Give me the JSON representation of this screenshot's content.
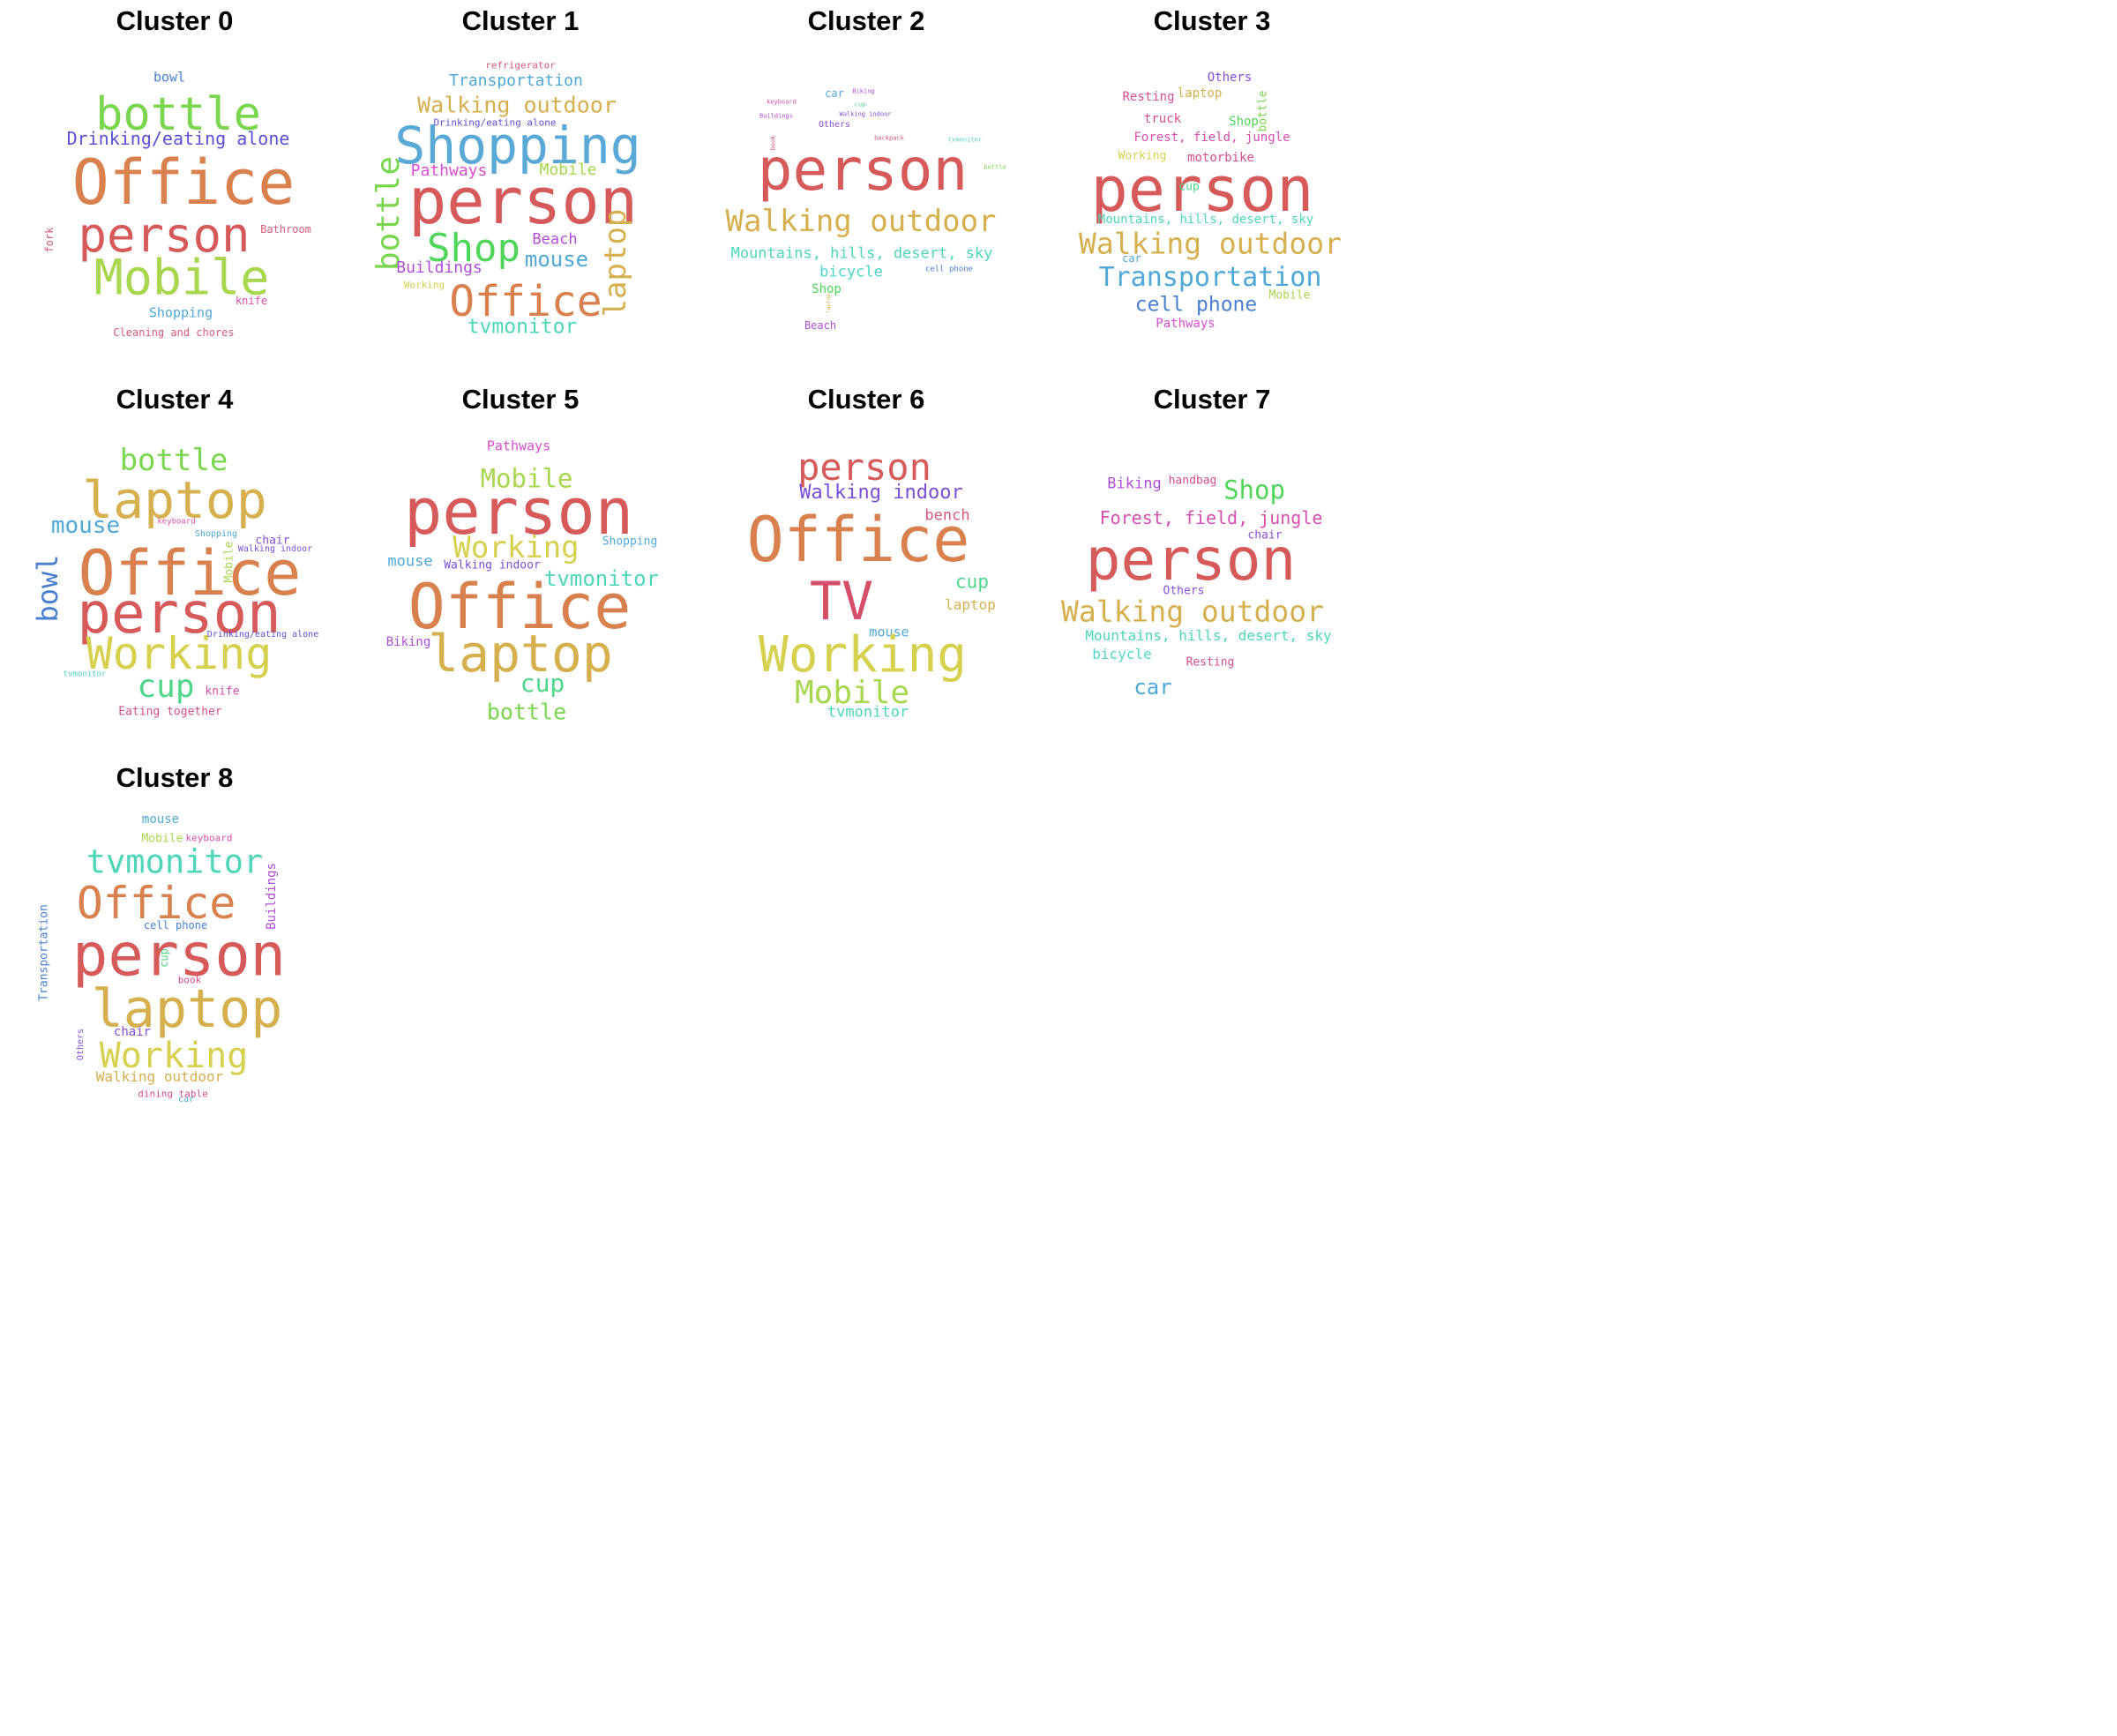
{
  "figure_title": "",
  "clusters": [
    {
      "title": "Cluster 0",
      "words": [
        {
          "text": "bowl",
          "weight": 0.1,
          "color": "#4a7fd0"
        },
        {
          "text": "bottle",
          "weight": 0.55,
          "color": "#7bd64f"
        },
        {
          "text": "Drinking/eating alone",
          "weight": 0.22,
          "color": "#5a4fd6"
        },
        {
          "text": "Office",
          "weight": 1.0,
          "color": "#d9804f"
        },
        {
          "text": "person",
          "weight": 0.68,
          "color": "#d65a5a"
        },
        {
          "text": "Bathroom",
          "weight": 0.08,
          "color": "#d65a7a"
        },
        {
          "text": "fork",
          "weight": 0.07,
          "color": "#d65a7a"
        },
        {
          "text": "Mobile",
          "weight": 0.7,
          "color": "#a8d64f"
        },
        {
          "text": "knife",
          "weight": 0.08,
          "color": "#d64fa8"
        },
        {
          "text": "Shopping",
          "weight": 0.12,
          "color": "#4fa8d6"
        },
        {
          "text": "Cleaning and chores",
          "weight": 0.08,
          "color": "#d65a7a"
        }
      ]
    },
    {
      "title": "Cluster 1",
      "words": [
        {
          "text": "refrigerator",
          "weight": 0.08,
          "color": "#d65a7a"
        },
        {
          "text": "Transportation",
          "weight": 0.2,
          "color": "#4fa8d6"
        },
        {
          "text": "Walking outdoor",
          "weight": 0.27,
          "color": "#d6b04f"
        },
        {
          "text": "Drinking/eating alone",
          "weight": 0.08,
          "color": "#5a4fd6"
        },
        {
          "text": "Shopping",
          "weight": 0.78,
          "color": "#5aa8d6"
        },
        {
          "text": "Pathways",
          "weight": 0.17,
          "color": "#d64fd0"
        },
        {
          "text": "Mobile",
          "weight": 0.17,
          "color": "#a8d64f"
        },
        {
          "text": "person",
          "weight": 1.0,
          "color": "#d65a5a"
        },
        {
          "text": "bottle",
          "weight": 0.32,
          "color": "#7bd64f"
        },
        {
          "text": "Shop",
          "weight": 0.52,
          "color": "#4fd65a"
        },
        {
          "text": "Beach",
          "weight": 0.16,
          "color": "#b04fd6"
        },
        {
          "text": "mouse",
          "weight": 0.28,
          "color": "#4fa8d6"
        },
        {
          "text": "laptop",
          "weight": 0.3,
          "color": "#d6b04f"
        },
        {
          "text": "Buildings",
          "weight": 0.17,
          "color": "#b04fd6"
        },
        {
          "text": "Working",
          "weight": 0.07,
          "color": "#d6d04f"
        },
        {
          "text": "Office",
          "weight": 0.62,
          "color": "#d9804f"
        },
        {
          "text": "tvmonitor",
          "weight": 0.24,
          "color": "#4fd6b8"
        }
      ]
    },
    {
      "title": "Cluster 2",
      "words": [
        {
          "text": "car",
          "weight": 0.1,
          "color": "#4fa8d6"
        },
        {
          "text": "Biking",
          "weight": 0.05,
          "color": "#b04fd6"
        },
        {
          "text": "keyboard",
          "weight": 0.05,
          "color": "#d64fa8"
        },
        {
          "text": "cup",
          "weight": 0.05,
          "color": "#4fd68a"
        },
        {
          "text": "Buildings",
          "weight": 0.05,
          "color": "#b04fd6"
        },
        {
          "text": "Walking indoor",
          "weight": 0.05,
          "color": "#7a4fd6"
        },
        {
          "text": "Others",
          "weight": 0.07,
          "color": "#8a4fd6"
        },
        {
          "text": "book",
          "weight": 0.05,
          "color": "#d65a7a"
        },
        {
          "text": "backpack",
          "weight": 0.05,
          "color": "#d65a7a"
        },
        {
          "text": "tvmonitor",
          "weight": 0.05,
          "color": "#4fd6b8"
        },
        {
          "text": "bottle",
          "weight": 0.05,
          "color": "#7bd64f"
        },
        {
          "text": "person",
          "weight": 1.0,
          "color": "#d65a5a"
        },
        {
          "text": "Walking outdoor",
          "weight": 0.47,
          "color": "#d6b04f"
        },
        {
          "text": "Mountains, hills, desert, sky",
          "weight": 0.22,
          "color": "#4fd6b8"
        },
        {
          "text": "bicycle",
          "weight": 0.2,
          "color": "#4fd6c8"
        },
        {
          "text": "cell phone",
          "weight": 0.07,
          "color": "#4a7fd0"
        },
        {
          "text": "Shop",
          "weight": 0.15,
          "color": "#4fd65a"
        },
        {
          "text": "laptop",
          "weight": 0.04,
          "color": "#d6b04f"
        },
        {
          "text": "Beach",
          "weight": 0.1,
          "color": "#b04fd6"
        }
      ]
    },
    {
      "title": "Cluster 3",
      "words": [
        {
          "text": "Others",
          "weight": 0.14,
          "color": "#8a4fd6"
        },
        {
          "text": "Resting",
          "weight": 0.14,
          "color": "#d64f8a"
        },
        {
          "text": "laptop",
          "weight": 0.14,
          "color": "#d6b04f"
        },
        {
          "text": "bottle",
          "weight": 0.13,
          "color": "#7bd64f"
        },
        {
          "text": "truck",
          "weight": 0.14,
          "color": "#d64f8a"
        },
        {
          "text": "Shop",
          "weight": 0.14,
          "color": "#4fd65a"
        },
        {
          "text": "Forest, field, jungle",
          "weight": 0.14,
          "color": "#d64fb0"
        },
        {
          "text": "Working",
          "weight": 0.13,
          "color": "#d6d04f"
        },
        {
          "text": "motorbike",
          "weight": 0.14,
          "color": "#d64f8a"
        },
        {
          "text": "person",
          "weight": 1.0,
          "color": "#d65a5a"
        },
        {
          "text": "cup",
          "weight": 0.12,
          "color": "#4fd68a"
        },
        {
          "text": "Mountains, hills, desert, sky",
          "weight": 0.14,
          "color": "#4fd6b8"
        },
        {
          "text": "Walking outdoor",
          "weight": 0.45,
          "color": "#d6b04f"
        },
        {
          "text": "car",
          "weight": 0.12,
          "color": "#4fa8d6"
        },
        {
          "text": "Transportation",
          "weight": 0.4,
          "color": "#4fa8d6"
        },
        {
          "text": "cell phone",
          "weight": 0.32,
          "color": "#4a7fd0"
        },
        {
          "text": "Mobile",
          "weight": 0.13,
          "color": "#a8d64f"
        },
        {
          "text": "Pathways",
          "weight": 0.13,
          "color": "#d64fd0"
        }
      ]
    },
    {
      "title": "Cluster 4",
      "words": [
        {
          "text": "bottle",
          "weight": 0.46,
          "color": "#7bd64f"
        },
        {
          "text": "laptop",
          "weight": 0.82,
          "color": "#d6b04f"
        },
        {
          "text": "mouse",
          "weight": 0.35,
          "color": "#4fa8d6"
        },
        {
          "text": "keyboard",
          "weight": 0.07,
          "color": "#d64fa8"
        },
        {
          "text": "Shopping",
          "weight": 0.07,
          "color": "#4fa8d6"
        },
        {
          "text": "chair",
          "weight": 0.12,
          "color": "#8a4fd6"
        },
        {
          "text": "Walking indoor",
          "weight": 0.08,
          "color": "#7a4fd6"
        },
        {
          "text": "bowl",
          "weight": 0.43,
          "color": "#4a7fd0"
        },
        {
          "text": "Mobile",
          "weight": 0.1,
          "color": "#a8d64f"
        },
        {
          "text": "Office",
          "weight": 1.0,
          "color": "#d9804f"
        },
        {
          "text": "person",
          "weight": 0.92,
          "color": "#d65a5a"
        },
        {
          "text": "Drinking/eating alone",
          "weight": 0.07,
          "color": "#5a4fd6"
        },
        {
          "text": "Working",
          "weight": 0.72,
          "color": "#d6d04f"
        },
        {
          "text": "tvmonitor",
          "weight": 0.06,
          "color": "#4fd6b8"
        },
        {
          "text": "cup",
          "weight": 0.5,
          "color": "#4fd68a"
        },
        {
          "text": "knife",
          "weight": 0.12,
          "color": "#d64fa8"
        },
        {
          "text": "Eating together",
          "weight": 0.12,
          "color": "#d64f8a"
        }
      ]
    },
    {
      "title": "Cluster 5",
      "words": [
        {
          "text": "Pathways",
          "weight": 0.14,
          "color": "#d64fd0"
        },
        {
          "text": "Mobile",
          "weight": 0.38,
          "color": "#a8d64f"
        },
        {
          "text": "person",
          "weight": 0.95,
          "color": "#d65a5a"
        },
        {
          "text": "Working",
          "weight": 0.46,
          "color": "#d6d04f"
        },
        {
          "text": "Shopping",
          "weight": 0.12,
          "color": "#4fa8d6"
        },
        {
          "text": "mouse",
          "weight": 0.21,
          "color": "#4fa8d6"
        },
        {
          "text": "Walking indoor",
          "weight": 0.14,
          "color": "#7a4fd6"
        },
        {
          "text": "tvmonitor",
          "weight": 0.27,
          "color": "#4fd6b8"
        },
        {
          "text": "Office",
          "weight": 1.0,
          "color": "#d9804f"
        },
        {
          "text": "Biking",
          "weight": 0.13,
          "color": "#b04fd6"
        },
        {
          "text": "laptop",
          "weight": 0.82,
          "color": "#d6b04f"
        },
        {
          "text": "cup",
          "weight": 0.33,
          "color": "#4fd68a"
        },
        {
          "text": "bottle",
          "weight": 0.3,
          "color": "#7bd64f"
        }
      ]
    },
    {
      "title": "Cluster 6",
      "words": [
        {
          "text": "person",
          "weight": 0.56,
          "color": "#d65a5a"
        },
        {
          "text": "Walking indoor",
          "weight": 0.3,
          "color": "#7a4fd6"
        },
        {
          "text": "bench",
          "weight": 0.2,
          "color": "#d65a7a"
        },
        {
          "text": "Office",
          "weight": 1.0,
          "color": "#d9804f"
        },
        {
          "text": "cup",
          "weight": 0.28,
          "color": "#4fd68a"
        },
        {
          "text": "laptop",
          "weight": 0.85,
          "color": "#d6b04f"
        },
        {
          "text": "mouse",
          "weight": 0.21,
          "color": "#4fa8d6"
        },
        {
          "text": "TV",
          "weight": 0.18,
          "color": "#d64f6a"
        },
        {
          "text": "Working",
          "weight": 0.78,
          "color": "#d6d04f"
        },
        {
          "text": "Mobile",
          "weight": 0.52,
          "color": "#a8d64f"
        },
        {
          "text": "tvmonitor",
          "weight": 0.21,
          "color": "#4fd6b8"
        }
      ]
    },
    {
      "title": "Cluster 7",
      "words": [
        {
          "text": "Biking",
          "weight": 0.17,
          "color": "#b04fd6"
        },
        {
          "text": "handbag",
          "weight": 0.12,
          "color": "#d64f8a"
        },
        {
          "text": "Shop",
          "weight": 0.28,
          "color": "#4fd65a"
        },
        {
          "text": "Forest, field, jungle",
          "weight": 0.2,
          "color": "#d64fb0"
        },
        {
          "text": "chair",
          "weight": 0.13,
          "color": "#8a4fd6"
        },
        {
          "text": "person",
          "weight": 1.0,
          "color": "#d65a5a"
        },
        {
          "text": "Others",
          "weight": 0.12,
          "color": "#8a4fd6"
        },
        {
          "text": "Walking outdoor",
          "weight": 0.42,
          "color": "#d6b04f"
        },
        {
          "text": "Mountains, hills, desert, sky",
          "weight": 0.18,
          "color": "#4fd6b8"
        },
        {
          "text": "bicycle",
          "weight": 0.17,
          "color": "#4fd6c8"
        },
        {
          "text": "Resting",
          "weight": 0.13,
          "color": "#d64f8a"
        },
        {
          "text": "car",
          "weight": 0.28,
          "color": "#4fa8d6"
        }
      ]
    },
    {
      "title": "Cluster 8",
      "words": [
        {
          "text": "mouse",
          "weight": 0.14,
          "color": "#4fa8d6"
        },
        {
          "text": "Mobile",
          "weight": 0.13,
          "color": "#a8d64f"
        },
        {
          "text": "keyboard",
          "weight": 0.11,
          "color": "#d64fa8"
        },
        {
          "text": "tvmonitor",
          "weight": 0.52,
          "color": "#4fd6b8"
        },
        {
          "text": "Buildings",
          "weight": 0.16,
          "color": "#b04fd6"
        },
        {
          "text": "Office",
          "weight": 0.7,
          "color": "#d9804f"
        },
        {
          "text": "Transportation",
          "weight": 0.13,
          "color": "#4a7fd0"
        },
        {
          "text": "cell phone",
          "weight": 0.12,
          "color": "#4a7fd0"
        },
        {
          "text": "person",
          "weight": 1.0,
          "color": "#d65a5a"
        },
        {
          "text": "cup",
          "weight": 0.12,
          "color": "#4fd68a"
        },
        {
          "text": "book",
          "weight": 0.11,
          "color": "#d64f8a"
        },
        {
          "text": "laptop",
          "weight": 0.86,
          "color": "#d6b04f"
        },
        {
          "text": "Others",
          "weight": 0.11,
          "color": "#8a4fd6"
        },
        {
          "text": "chair",
          "weight": 0.14,
          "color": "#8a4fd6"
        },
        {
          "text": "Working",
          "weight": 0.58,
          "color": "#d6d04f"
        },
        {
          "text": "Walking outdoor",
          "weight": 0.18,
          "color": "#d6b04f"
        },
        {
          "text": "dining table",
          "weight": 0.11,
          "color": "#d64f8a"
        },
        {
          "text": "car",
          "weight": 0.1,
          "color": "#4fa8d6"
        }
      ]
    }
  ]
}
